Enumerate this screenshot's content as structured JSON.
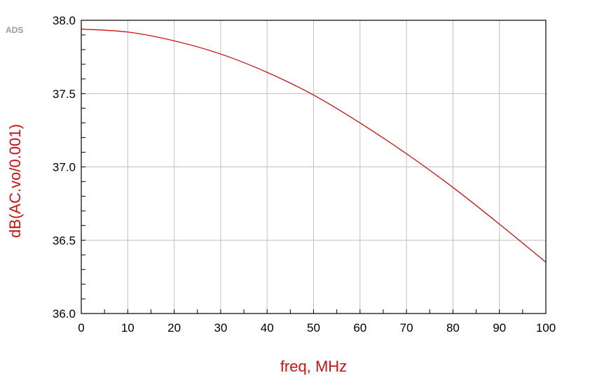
{
  "watermark": "ADS",
  "colors": {
    "series": "#cc1111",
    "axis_label": "#cc1111",
    "grid": "#c0c0c0",
    "frame": "#000000"
  },
  "chart_data": {
    "type": "line",
    "title": "",
    "xlabel": "freq, MHz",
    "ylabel": "dB(AC.vo/0.001)",
    "xlim": [
      0,
      100
    ],
    "ylim": [
      36.0,
      38.0
    ],
    "grid": true,
    "x_ticks": [
      "0",
      "10",
      "20",
      "30",
      "40",
      "50",
      "60",
      "70",
      "80",
      "90",
      "100"
    ],
    "y_ticks": [
      "36.0",
      "36.5",
      "37.0",
      "37.5",
      "38.0"
    ],
    "series": [
      {
        "x": [
          0,
          10,
          20,
          30,
          40,
          50,
          60,
          70,
          80,
          90,
          100
        ],
        "y": [
          37.94,
          37.92,
          37.86,
          37.77,
          37.645,
          37.49,
          37.3,
          37.09,
          36.86,
          36.61,
          36.35
        ]
      }
    ]
  }
}
